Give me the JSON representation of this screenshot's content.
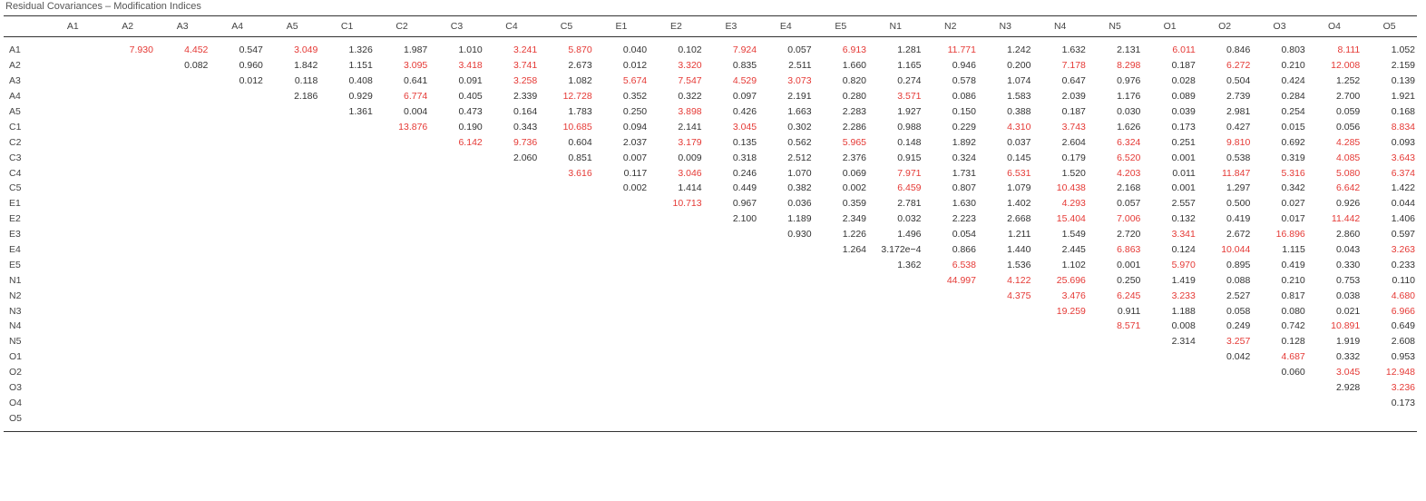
{
  "title": "Residual Covariances – Modification Indices",
  "table": {
    "columns": [
      "A1",
      "A2",
      "A3",
      "A4",
      "A5",
      "C1",
      "C2",
      "C3",
      "C4",
      "C5",
      "E1",
      "E2",
      "E3",
      "E4",
      "E5",
      "N1",
      "N2",
      "N3",
      "N4",
      "N5",
      "O1",
      "O2",
      "O3",
      "O4",
      "O5"
    ],
    "rows": [
      "A1",
      "A2",
      "A3",
      "A4",
      "A5",
      "C1",
      "C2",
      "C3",
      "C4",
      "C5",
      "E1",
      "E2",
      "E3",
      "E4",
      "E5",
      "N1",
      "N2",
      "N3",
      "N4",
      "N5",
      "O1",
      "O2",
      "O3",
      "O4",
      "O5"
    ],
    "cells": [
      [
        "7.930",
        "4.452",
        "0.547",
        "3.049",
        "1.326",
        "1.987",
        "1.010",
        "3.241",
        "5.870",
        "0.040",
        "0.102",
        "7.924",
        "0.057",
        "6.913",
        "1.281",
        "11.771",
        "1.242",
        "1.632",
        "2.131",
        "6.011",
        "0.846",
        "0.803",
        "8.111",
        "1.052"
      ],
      [
        "0.082",
        "0.960",
        "1.842",
        "1.151",
        "3.095",
        "3.418",
        "3.741",
        "2.673",
        "0.012",
        "3.320",
        "0.835",
        "2.511",
        "1.660",
        "1.165",
        "0.946",
        "0.200",
        "7.178",
        "8.298",
        "0.187",
        "6.272",
        "0.210",
        "12.008",
        "2.159"
      ],
      [
        "0.012",
        "0.118",
        "0.408",
        "0.641",
        "0.091",
        "3.258",
        "1.082",
        "5.674",
        "7.547",
        "4.529",
        "3.073",
        "0.820",
        "0.274",
        "0.578",
        "1.074",
        "0.647",
        "0.976",
        "0.028",
        "0.504",
        "0.424",
        "1.252",
        "0.139"
      ],
      [
        "2.186",
        "0.929",
        "6.774",
        "0.405",
        "2.339",
        "12.728",
        "0.352",
        "0.322",
        "0.097",
        "2.191",
        "0.280",
        "3.571",
        "0.086",
        "1.583",
        "2.039",
        "1.176",
        "0.089",
        "2.739",
        "0.284",
        "2.700",
        "1.921"
      ],
      [
        "1.361",
        "0.004",
        "0.473",
        "0.164",
        "1.783",
        "0.250",
        "3.898",
        "0.426",
        "1.663",
        "2.283",
        "1.927",
        "0.150",
        "0.388",
        "0.187",
        "0.030",
        "0.039",
        "2.981",
        "0.254",
        "0.059",
        "0.168"
      ],
      [
        "13.876",
        "0.190",
        "0.343",
        "10.685",
        "0.094",
        "2.141",
        "3.045",
        "0.302",
        "2.286",
        "0.988",
        "0.229",
        "4.310",
        "3.743",
        "1.626",
        "0.173",
        "0.427",
        "0.015",
        "0.056",
        "8.834"
      ],
      [
        "6.142",
        "9.736",
        "0.604",
        "2.037",
        "3.179",
        "0.135",
        "0.562",
        "5.965",
        "0.148",
        "1.892",
        "0.037",
        "2.604",
        "6.324",
        "0.251",
        "9.810",
        "0.692",
        "4.285",
        "0.093"
      ],
      [
        "2.060",
        "0.851",
        "0.007",
        "0.009",
        "0.318",
        "2.512",
        "2.376",
        "0.915",
        "0.324",
        "0.145",
        "0.179",
        "6.520",
        "0.001",
        "0.538",
        "0.319",
        "4.085",
        "3.643"
      ],
      [
        "3.616",
        "0.117",
        "3.046",
        "0.246",
        "1.070",
        "0.069",
        "7.971",
        "1.731",
        "6.531",
        "1.520",
        "4.203",
        "0.011",
        "11.847",
        "5.316",
        "5.080",
        "6.374"
      ],
      [
        "0.002",
        "1.414",
        "0.449",
        "0.382",
        "0.002",
        "6.459",
        "0.807",
        "1.079",
        "10.438",
        "2.168",
        "0.001",
        "1.297",
        "0.342",
        "6.642",
        "1.422"
      ],
      [
        "10.713",
        "0.967",
        "0.036",
        "0.359",
        "2.781",
        "1.630",
        "1.402",
        "4.293",
        "0.057",
        "2.557",
        "0.500",
        "0.027",
        "0.926",
        "0.044"
      ],
      [
        "2.100",
        "1.189",
        "2.349",
        "0.032",
        "2.223",
        "2.668",
        "15.404",
        "7.006",
        "0.132",
        "0.419",
        "0.017",
        "11.442",
        "1.406"
      ],
      [
        "0.930",
        "1.226",
        "1.496",
        "0.054",
        "1.211",
        "1.549",
        "2.720",
        "3.341",
        "2.672",
        "16.896",
        "2.860",
        "0.597"
      ],
      [
        "1.264",
        "3.172e−4",
        "0.866",
        "1.440",
        "2.445",
        "6.863",
        "0.124",
        "10.044",
        "1.115",
        "0.043",
        "3.263"
      ],
      [
        "1.362",
        "6.538",
        "1.536",
        "1.102",
        "0.001",
        "5.970",
        "0.895",
        "0.419",
        "0.330",
        "0.233"
      ],
      [
        "44.997",
        "4.122",
        "25.696",
        "0.250",
        "1.419",
        "0.088",
        "0.210",
        "0.753",
        "0.110"
      ],
      [
        "4.375",
        "3.476",
        "6.245",
        "3.233",
        "2.527",
        "0.817",
        "0.038",
        "4.680"
      ],
      [
        "19.259",
        "0.911",
        "1.188",
        "0.058",
        "0.080",
        "0.021",
        "6.966"
      ],
      [
        "8.571",
        "0.008",
        "0.249",
        "0.742",
        "10.891",
        "0.649"
      ],
      [
        "2.314",
        "3.257",
        "0.128",
        "1.919",
        "2.608"
      ],
      [
        "0.042",
        "4.687",
        "0.332",
        "0.953"
      ],
      [
        "0.060",
        "3.045",
        "12.948"
      ],
      [
        "2.928",
        "3.236"
      ],
      [
        "0.173"
      ],
      []
    ],
    "highlight_color": "#e53935",
    "highlight_threshold": 3.0
  }
}
